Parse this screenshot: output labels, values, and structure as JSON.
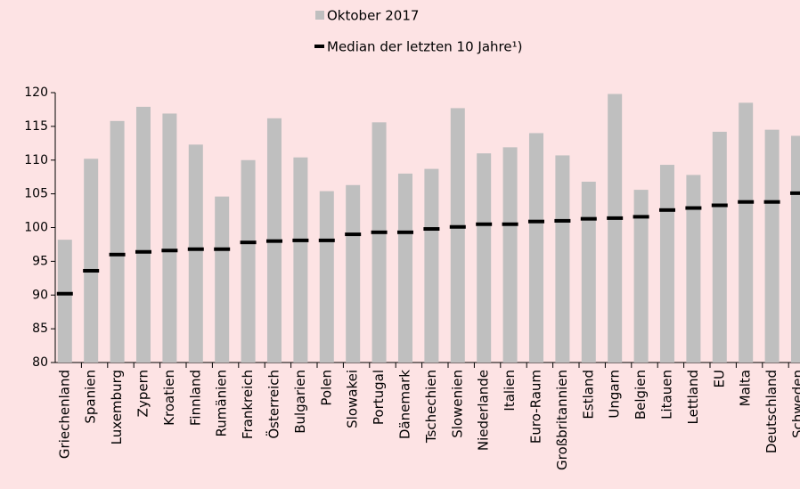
{
  "chart_data": {
    "type": "bar",
    "categories": [
      "Griechenland",
      "Spanien",
      "Luxemburg",
      "Zypern",
      "Kroatien",
      "Finnland",
      "Rumänien",
      "Frankreich",
      "Österreich",
      "Bulgarien",
      "Polen",
      "Slowakei",
      "Portugal",
      "Dänemark",
      "Tschechien",
      "Slowenien",
      "Niederlande",
      "Italien",
      "Euro-Raum",
      "Großbritannien",
      "Estland",
      "Ungarn",
      "Belgien",
      "Litauen",
      "Lettland",
      "EU",
      "Malta",
      "Deutschland",
      "Schweden"
    ],
    "series": [
      {
        "name": "Oktober 2017",
        "color": "#bfbfbf",
        "values": [
          98.2,
          110.2,
          115.8,
          117.9,
          116.9,
          112.3,
          104.6,
          110.0,
          116.2,
          110.4,
          105.4,
          106.3,
          115.6,
          108.0,
          108.7,
          117.7,
          111.0,
          111.9,
          114.0,
          110.7,
          106.8,
          119.8,
          105.6,
          109.3,
          107.8,
          114.2,
          118.5,
          114.5,
          113.6
        ]
      },
      {
        "name": "Median der letzten 10 Jahre¹)",
        "color": "#000000",
        "values": [
          90.2,
          93.6,
          96.0,
          96.4,
          96.6,
          96.8,
          96.8,
          97.8,
          98.0,
          98.1,
          98.1,
          99.0,
          99.3,
          99.3,
          99.8,
          100.1,
          100.5,
          100.5,
          100.9,
          101.0,
          101.3,
          101.4,
          101.6,
          102.6,
          102.9,
          103.3,
          103.8,
          103.8,
          105.1
        ]
      }
    ],
    "ylim": [
      80,
      120
    ],
    "yticks": [
      80,
      85,
      90,
      95,
      100,
      105,
      110,
      115,
      120
    ],
    "legend": "top"
  }
}
